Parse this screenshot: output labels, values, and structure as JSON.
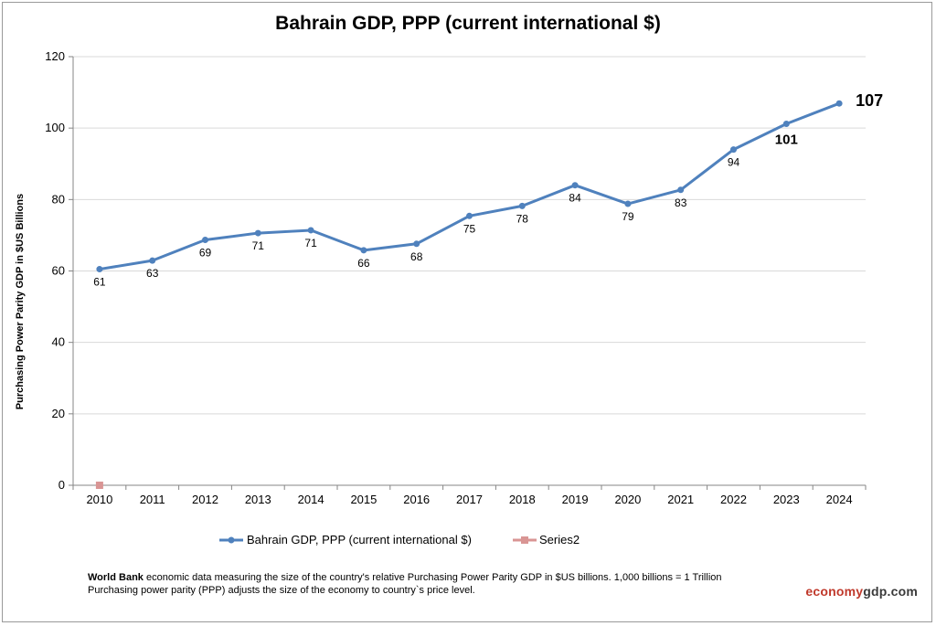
{
  "chart_data": {
    "type": "line",
    "title": "Bahrain GDP, PPP (current international $)",
    "ylabel": "Purchasing Power Parity GDP in $US Billions",
    "xlabel": "",
    "ylim": [
      0,
      120
    ],
    "yticks": [
      0,
      20,
      40,
      60,
      80,
      100,
      120
    ],
    "grid": true,
    "legend_position": "bottom",
    "x": [
      "2010",
      "2011",
      "2012",
      "2013",
      "2014",
      "2015",
      "2016",
      "2017",
      "2018",
      "2019",
      "2020",
      "2021",
      "2022",
      "2023",
      "2024"
    ],
    "series": [
      {
        "name": "Bahrain GDP, PPP (current international $)",
        "color": "#4f81bd",
        "values": [
          60.5,
          62.9,
          68.7,
          70.6,
          71.4,
          65.8,
          67.6,
          75.4,
          78.2,
          84.0,
          78.8,
          82.7,
          94.0,
          101.2,
          106.9
        ],
        "labels": [
          "61",
          "63",
          "69",
          "71",
          "71",
          "66",
          "68",
          "75",
          "78",
          "84",
          "79",
          "83",
          "94",
          "101",
          "107"
        ]
      },
      {
        "name": "Series2",
        "color": "#d99594",
        "values": [
          0,
          null,
          null,
          null,
          null,
          null,
          null,
          null,
          null,
          null,
          null,
          null,
          null,
          null,
          null
        ]
      }
    ]
  },
  "footnote": {
    "source": "World Bank",
    "line1": " economic data  measuring the size of the country's relative  Purchasing Power Parity GDP in $US billions. 1,000 billions = 1 Trillion",
    "line2": "Purchasing power parity (PPP) adjusts the size of the economy to country`s price level."
  },
  "brand": {
    "part1": "economy",
    "part2": "gdp",
    "part3": ".com"
  }
}
